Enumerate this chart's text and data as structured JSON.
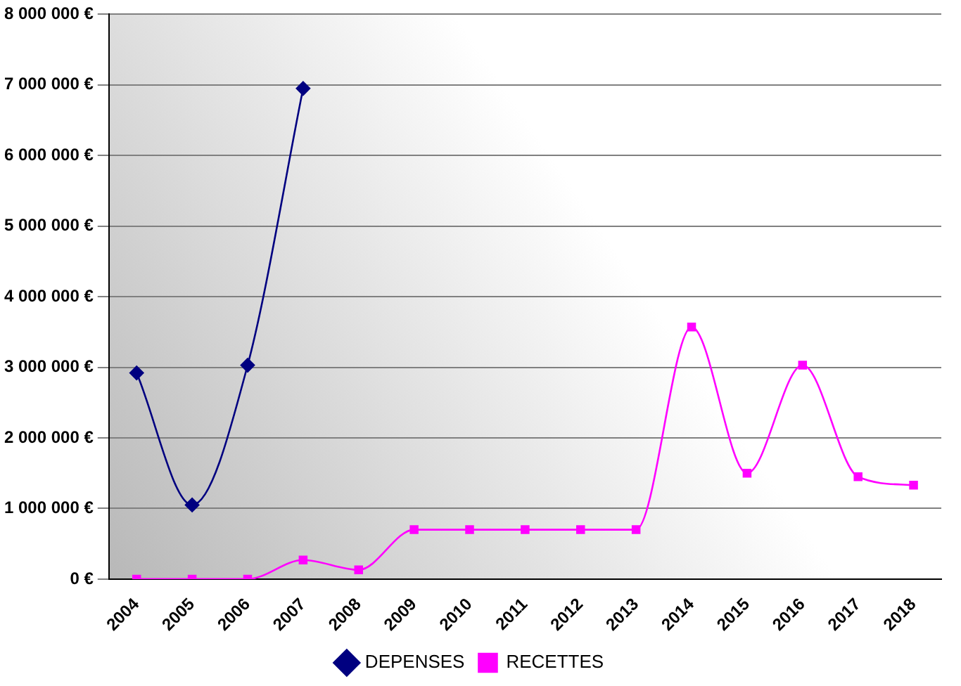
{
  "chart_data": {
    "type": "line",
    "categories": [
      "2004",
      "2005",
      "2006",
      "2007",
      "2008",
      "2009",
      "2010",
      "2011",
      "2012",
      "2013",
      "2014",
      "2015",
      "2016",
      "2017",
      "2018"
    ],
    "series": [
      {
        "name": "DEPENSES",
        "color": "#000080",
        "marker": "diamond",
        "values": [
          2920000,
          1050000,
          3030000,
          6950000,
          null,
          null,
          null,
          null,
          null,
          null,
          null,
          null,
          null,
          null,
          null
        ]
      },
      {
        "name": "RECETTES",
        "color": "#ff00ff",
        "marker": "square",
        "values": [
          0,
          0,
          0,
          270000,
          130000,
          700000,
          700000,
          700000,
          700000,
          700000,
          3570000,
          1500000,
          3030000,
          1450000,
          1330000
        ]
      }
    ],
    "ylim": [
      0,
      8000000
    ],
    "yticks": [
      {
        "value": 0,
        "label": "0 €"
      },
      {
        "value": 1000000,
        "label": "1 000 000 €"
      },
      {
        "value": 2000000,
        "label": "2 000 000 €"
      },
      {
        "value": 3000000,
        "label": "3 000 000 €"
      },
      {
        "value": 4000000,
        "label": "4 000 000 €"
      },
      {
        "value": 5000000,
        "label": "5 000 000 €"
      },
      {
        "value": 6000000,
        "label": "6 000 000 €"
      },
      {
        "value": 7000000,
        "label": "7 000 000 €"
      },
      {
        "value": 8000000,
        "label": "8 000 000 €"
      }
    ],
    "grid": "y",
    "legend": "bottom"
  }
}
